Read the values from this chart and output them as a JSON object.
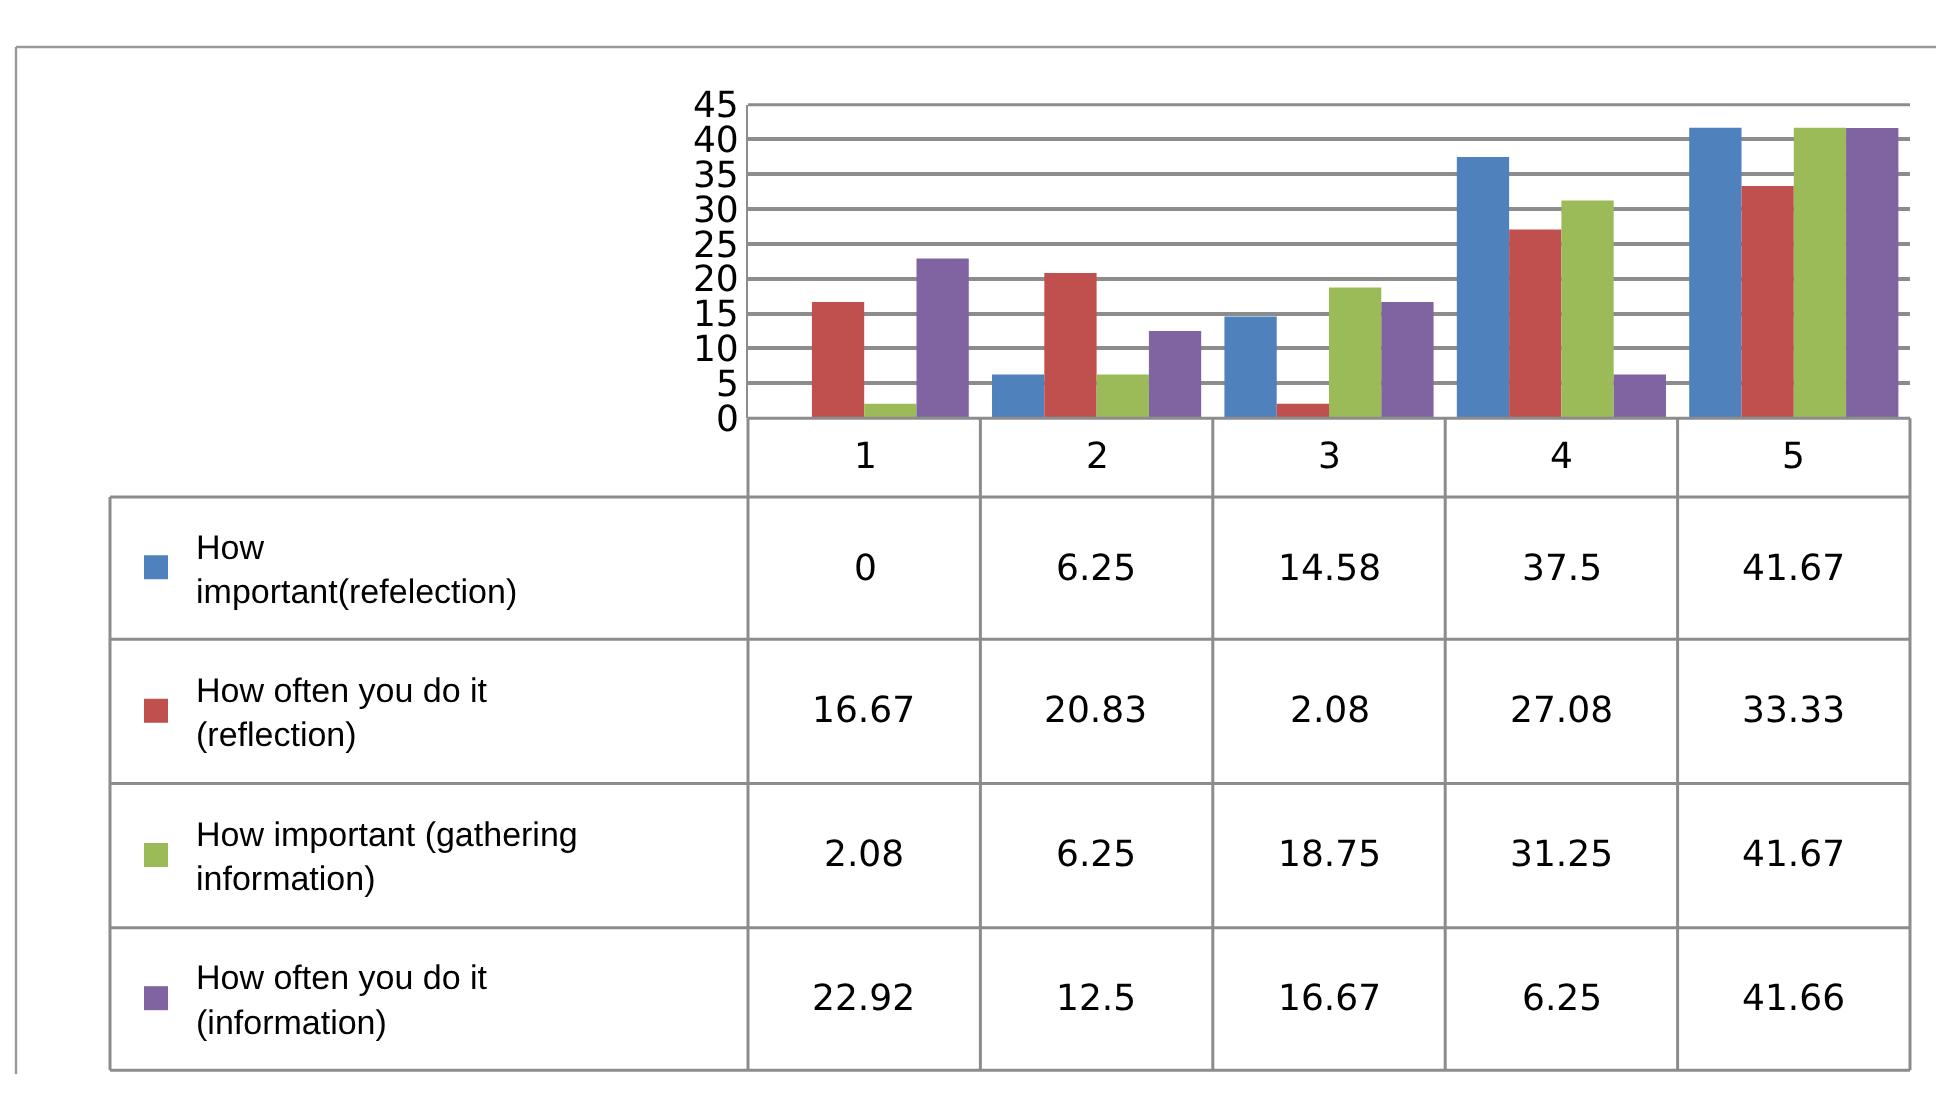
{
  "chart_data": {
    "type": "bar",
    "categories": [
      "1",
      "2",
      "3",
      "4",
      "5"
    ],
    "series": [
      {
        "name": "How important(refelection)",
        "color": "#4f81bd",
        "values": [
          0,
          6.25,
          14.58,
          37.5,
          41.67
        ]
      },
      {
        "name": "How often you do it (reflection)",
        "color": "#c0504d",
        "values": [
          16.67,
          20.83,
          2.08,
          27.08,
          33.33
        ]
      },
      {
        "name": "How important (gathering information)",
        "color": "#9bbb59",
        "values": [
          2.08,
          6.25,
          18.75,
          31.25,
          41.67
        ]
      },
      {
        "name": "How often you do it (information)",
        "color": "#8064a2",
        "values": [
          22.92,
          12.5,
          16.67,
          6.25,
          41.66
        ]
      }
    ],
    "ylim": [
      0,
      45
    ],
    "yticks": [
      0,
      5,
      10,
      15,
      20,
      25,
      30,
      35,
      40,
      45
    ],
    "grid": "y",
    "legend": "bottom",
    "data_labels": true
  }
}
